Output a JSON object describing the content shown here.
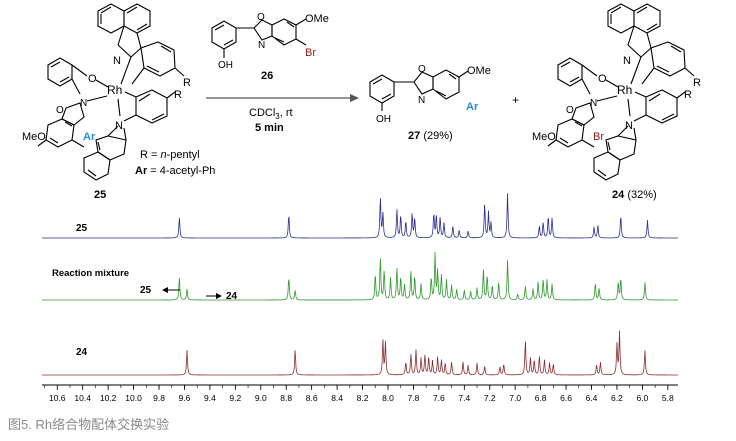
{
  "scheme": {
    "left_complex": {
      "label": "25",
      "atoms": {
        "metal": "Rh",
        "ligand_atoms": [
          "N",
          "N",
          "O",
          "N",
          "O"
        ],
        "substituent_r": [
          "R",
          "R"
        ],
        "methoxy": "MeO",
        "aryl": "Ar"
      }
    },
    "definitions": {
      "r_line": "R = n-pentyl",
      "ar_line": "Ar = 4-acetyl-Ph"
    },
    "reagent": {
      "label": "26",
      "atoms": [
        "OMe",
        "O",
        "N",
        "OH",
        "Br"
      ]
    },
    "conditions": {
      "solvent": "CDCl",
      "sub": "3",
      "temp": ", rt",
      "time": "5 min"
    },
    "product_organic": {
      "label": "27",
      "yield": "(29%)",
      "atoms": [
        "OMe",
        "O",
        "N",
        "OH",
        "Ar"
      ]
    },
    "plus": "+",
    "product_complex": {
      "label": "24",
      "yield": "(32%)",
      "atoms": {
        "metal": "Rh",
        "ligand_atoms": [
          "N",
          "N",
          "O",
          "N",
          "O"
        ],
        "substituent_r": [
          "R",
          "R"
        ],
        "methoxy": "MeO",
        "halide": "Br"
      }
    }
  },
  "spectra": {
    "traces": [
      {
        "label": "25",
        "color": "#2e2e8f"
      },
      {
        "label": "Reaction mixture",
        "color": "#2f9a2f",
        "markers": [
          {
            "label": "25",
            "direction": "left"
          },
          {
            "label": "24",
            "direction": "right"
          }
        ]
      },
      {
        "label": "24",
        "color": "#8b2d33"
      }
    ],
    "axis": {
      "ticks": [
        "10.6",
        "10.4",
        "10.2",
        "10.0",
        "9.8",
        "9.6",
        "9.4",
        "9.2",
        "9.0",
        "8.8",
        "8.6",
        "8.4",
        "8.2",
        "8.0",
        "7.8",
        "7.6",
        "7.4",
        "7.2",
        "7.0",
        "6.8",
        "6.6",
        "6.4",
        "6.2",
        "6.0",
        "5.8"
      ],
      "xlim": [
        10.72,
        5.72
      ]
    }
  },
  "chart_data": {
    "type": "line",
    "x_unit": "ppm",
    "xlim": [
      10.72,
      5.72
    ],
    "series": [
      {
        "name": "25",
        "peaks": [
          {
            "ppm": 9.64,
            "h": 0.42
          },
          {
            "ppm": 8.78,
            "h": 0.48
          },
          {
            "ppm": 8.06,
            "h": 0.82
          },
          {
            "ppm": 8.04,
            "h": 0.5
          },
          {
            "ppm": 7.93,
            "h": 0.58
          },
          {
            "ppm": 7.9,
            "h": 0.46
          },
          {
            "ppm": 7.86,
            "h": 0.34
          },
          {
            "ppm": 7.81,
            "h": 0.5
          },
          {
            "ppm": 7.79,
            "h": 0.4
          },
          {
            "ppm": 7.64,
            "h": 0.5
          },
          {
            "ppm": 7.62,
            "h": 0.46
          },
          {
            "ppm": 7.59,
            "h": 0.42
          },
          {
            "ppm": 7.56,
            "h": 0.3
          },
          {
            "ppm": 7.49,
            "h": 0.24
          },
          {
            "ppm": 7.44,
            "h": 0.16
          },
          {
            "ppm": 7.37,
            "h": 0.14
          },
          {
            "ppm": 7.24,
            "h": 0.7
          },
          {
            "ppm": 7.21,
            "h": 0.52
          },
          {
            "ppm": 7.19,
            "h": 0.3
          },
          {
            "ppm": 7.06,
            "h": 0.9
          },
          {
            "ppm": 6.81,
            "h": 0.24
          },
          {
            "ppm": 6.78,
            "h": 0.32
          },
          {
            "ppm": 6.74,
            "h": 0.44
          },
          {
            "ppm": 6.71,
            "h": 0.4
          },
          {
            "ppm": 6.38,
            "h": 0.22
          },
          {
            "ppm": 6.35,
            "h": 0.26
          },
          {
            "ppm": 6.17,
            "h": 0.46
          },
          {
            "ppm": 5.96,
            "h": 0.36
          }
        ]
      },
      {
        "name": "Reaction mixture",
        "peaks": [
          {
            "ppm": 9.64,
            "h": 0.46
          },
          {
            "ppm": 9.58,
            "h": 0.22
          },
          {
            "ppm": 8.78,
            "h": 0.46
          },
          {
            "ppm": 8.73,
            "h": 0.2
          },
          {
            "ppm": 8.1,
            "h": 0.52
          },
          {
            "ppm": 8.06,
            "h": 0.86
          },
          {
            "ppm": 8.03,
            "h": 0.6
          },
          {
            "ppm": 7.98,
            "h": 0.44
          },
          {
            "ppm": 7.93,
            "h": 0.64
          },
          {
            "ppm": 7.9,
            "h": 0.46
          },
          {
            "ppm": 7.87,
            "h": 0.3
          },
          {
            "ppm": 7.82,
            "h": 0.58
          },
          {
            "ppm": 7.79,
            "h": 0.48
          },
          {
            "ppm": 7.74,
            "h": 0.32
          },
          {
            "ppm": 7.66,
            "h": 0.46
          },
          {
            "ppm": 7.63,
            "h": 0.92
          },
          {
            "ppm": 7.61,
            "h": 0.58
          },
          {
            "ppm": 7.58,
            "h": 0.5
          },
          {
            "ppm": 7.54,
            "h": 0.4
          },
          {
            "ppm": 7.5,
            "h": 0.3
          },
          {
            "ppm": 7.46,
            "h": 0.22
          },
          {
            "ppm": 7.4,
            "h": 0.2
          },
          {
            "ppm": 7.35,
            "h": 0.18
          },
          {
            "ppm": 7.3,
            "h": 0.24
          },
          {
            "ppm": 7.25,
            "h": 0.62
          },
          {
            "ppm": 7.22,
            "h": 0.5
          },
          {
            "ppm": 7.18,
            "h": 0.3
          },
          {
            "ppm": 7.13,
            "h": 0.36
          },
          {
            "ppm": 7.06,
            "h": 0.8
          },
          {
            "ppm": 6.98,
            "h": 0.12
          },
          {
            "ppm": 6.92,
            "h": 0.28
          },
          {
            "ppm": 6.86,
            "h": 0.22
          },
          {
            "ppm": 6.82,
            "h": 0.36
          },
          {
            "ppm": 6.78,
            "h": 0.42
          },
          {
            "ppm": 6.75,
            "h": 0.4
          },
          {
            "ppm": 6.71,
            "h": 0.32
          },
          {
            "ppm": 6.37,
            "h": 0.34
          },
          {
            "ppm": 6.34,
            "h": 0.24
          },
          {
            "ppm": 6.19,
            "h": 0.36
          },
          {
            "ppm": 6.17,
            "h": 0.44
          },
          {
            "ppm": 5.98,
            "h": 0.36
          }
        ]
      },
      {
        "name": "24",
        "peaks": [
          {
            "ppm": 9.58,
            "h": 0.5
          },
          {
            "ppm": 8.73,
            "h": 0.52
          },
          {
            "ppm": 8.04,
            "h": 0.7
          },
          {
            "ppm": 8.02,
            "h": 0.66
          },
          {
            "ppm": 7.86,
            "h": 0.26
          },
          {
            "ppm": 7.82,
            "h": 0.42
          },
          {
            "ppm": 7.78,
            "h": 0.5
          },
          {
            "ppm": 7.74,
            "h": 0.34
          },
          {
            "ppm": 7.71,
            "h": 0.4
          },
          {
            "ppm": 7.68,
            "h": 0.36
          },
          {
            "ppm": 7.65,
            "h": 0.28
          },
          {
            "ppm": 7.61,
            "h": 0.36
          },
          {
            "ppm": 7.58,
            "h": 0.3
          },
          {
            "ppm": 7.55,
            "h": 0.24
          },
          {
            "ppm": 7.5,
            "h": 0.26
          },
          {
            "ppm": 7.41,
            "h": 0.26
          },
          {
            "ppm": 7.37,
            "h": 0.2
          },
          {
            "ppm": 7.3,
            "h": 0.24
          },
          {
            "ppm": 7.24,
            "h": 0.18
          },
          {
            "ppm": 7.12,
            "h": 0.16
          },
          {
            "ppm": 7.09,
            "h": 0.22
          },
          {
            "ppm": 6.92,
            "h": 0.7
          },
          {
            "ppm": 6.88,
            "h": 0.34
          },
          {
            "ppm": 6.85,
            "h": 0.3
          },
          {
            "ppm": 6.81,
            "h": 0.38
          },
          {
            "ppm": 6.77,
            "h": 0.3
          },
          {
            "ppm": 6.73,
            "h": 0.24
          },
          {
            "ppm": 6.7,
            "h": 0.22
          },
          {
            "ppm": 6.36,
            "h": 0.2
          },
          {
            "ppm": 6.33,
            "h": 0.26
          },
          {
            "ppm": 6.2,
            "h": 0.62
          },
          {
            "ppm": 6.18,
            "h": 0.86
          },
          {
            "ppm": 5.98,
            "h": 0.5
          }
        ]
      }
    ]
  },
  "caption": "图5. Rh络合物配体交换实验",
  "colors": {
    "accent_blue": "#1f8fd8",
    "bromine": "#8b1a1a",
    "arrow": "#555555"
  }
}
